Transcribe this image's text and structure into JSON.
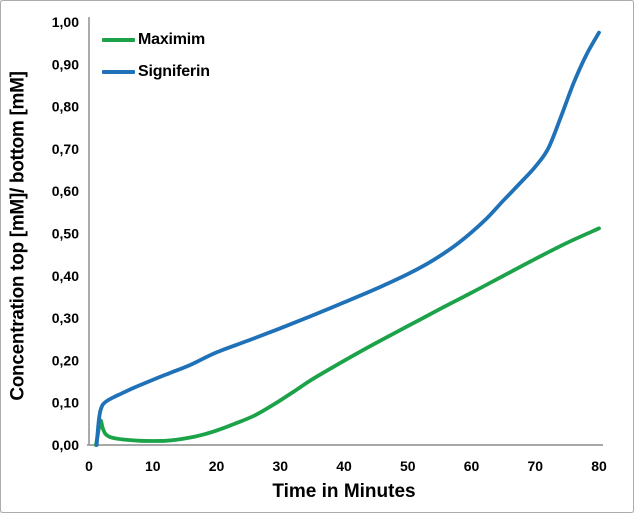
{
  "figure": {
    "background": "#FFFFFF",
    "border_color": "#ABABAB"
  },
  "chart_data": {
    "type": "line",
    "title": "",
    "xlabel": "Time in Minutes",
    "ylabel": "Concentration top [mM]/ bottom [mM]",
    "xlim": [
      0,
      80
    ],
    "ylim": [
      0,
      1.0
    ],
    "grid": false,
    "legend_position": "top-left",
    "decimal_separator": ",",
    "axis_color": "#9C9C9C",
    "tick_label_color": "#000000",
    "x_ticks": [
      {
        "v": 0,
        "label": "0"
      },
      {
        "v": 10,
        "label": "10"
      },
      {
        "v": 20,
        "label": "20"
      },
      {
        "v": 30,
        "label": "30"
      },
      {
        "v": 40,
        "label": "40"
      },
      {
        "v": 50,
        "label": "50"
      },
      {
        "v": 60,
        "label": "60"
      },
      {
        "v": 70,
        "label": "70"
      },
      {
        "v": 80,
        "label": "80"
      }
    ],
    "y_ticks": [
      {
        "v": 0.0,
        "label": "0,00"
      },
      {
        "v": 0.1,
        "label": "0,10"
      },
      {
        "v": 0.2,
        "label": "0,20"
      },
      {
        "v": 0.3,
        "label": "0,30"
      },
      {
        "v": 0.4,
        "label": "0,40"
      },
      {
        "v": 0.5,
        "label": "0,50"
      },
      {
        "v": 0.6,
        "label": "0,60"
      },
      {
        "v": 0.7,
        "label": "0,70"
      },
      {
        "v": 0.8,
        "label": "0,80"
      },
      {
        "v": 0.9,
        "label": "0,90"
      },
      {
        "v": 1.0,
        "label": "1,00"
      }
    ],
    "series": [
      {
        "name": "Maximim",
        "color": "#1CA34A",
        "points": [
          [
            1.1,
            0
          ],
          [
            1.45,
            0.03
          ],
          [
            1.8,
            0.058
          ],
          [
            2.15,
            0.04
          ],
          [
            2.5,
            0.028
          ],
          [
            3,
            0.021
          ],
          [
            4,
            0.016
          ],
          [
            6,
            0.012
          ],
          [
            8,
            0.01
          ],
          [
            10,
            0.0095
          ],
          [
            12,
            0.01
          ],
          [
            14,
            0.013
          ],
          [
            16,
            0.018
          ],
          [
            18,
            0.025
          ],
          [
            20,
            0.034
          ],
          [
            23,
            0.051
          ],
          [
            26,
            0.07
          ],
          [
            29,
            0.096
          ],
          [
            32,
            0.125
          ],
          [
            35,
            0.155
          ],
          [
            40,
            0.199
          ],
          [
            45,
            0.241
          ],
          [
            50,
            0.281
          ],
          [
            55,
            0.321
          ],
          [
            60,
            0.36
          ],
          [
            65,
            0.4
          ],
          [
            70,
            0.44
          ],
          [
            75,
            0.478
          ],
          [
            80,
            0.512
          ]
        ]
      },
      {
        "name": "Signiferin",
        "color": "#1F71B8",
        "points": [
          [
            1.2,
            0
          ],
          [
            1.35,
            0.028
          ],
          [
            1.55,
            0.06
          ],
          [
            1.8,
            0.082
          ],
          [
            2.2,
            0.096
          ],
          [
            3,
            0.106
          ],
          [
            4,
            0.114
          ],
          [
            5,
            0.121
          ],
          [
            7,
            0.135
          ],
          [
            10,
            0.154
          ],
          [
            13,
            0.172
          ],
          [
            16,
            0.19
          ],
          [
            20,
            0.219
          ],
          [
            25,
            0.247
          ],
          [
            30,
            0.276
          ],
          [
            35,
            0.306
          ],
          [
            40,
            0.337
          ],
          [
            45,
            0.369
          ],
          [
            50,
            0.404
          ],
          [
            54,
            0.437
          ],
          [
            58,
            0.478
          ],
          [
            62,
            0.53
          ],
          [
            65,
            0.578
          ],
          [
            68,
            0.625
          ],
          [
            70,
            0.658
          ],
          [
            72,
            0.7
          ],
          [
            74,
            0.775
          ],
          [
            76,
            0.855
          ],
          [
            78,
            0.922
          ],
          [
            80,
            0.975
          ]
        ]
      }
    ]
  }
}
